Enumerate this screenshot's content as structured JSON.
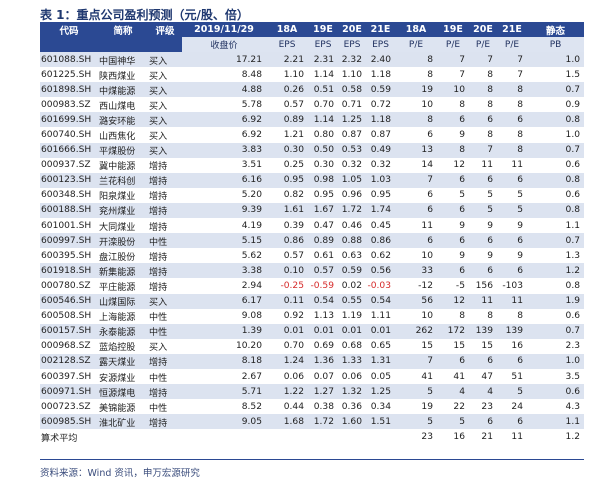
{
  "title": "表 1：重点公司盈利预测（元/股、倍）",
  "header": {
    "row1": [
      "代码",
      "简称",
      "评级",
      "2019/11/29",
      "18A",
      "19E",
      "20E",
      "21E",
      "18A",
      "19E",
      "20E",
      "21E",
      "静态"
    ],
    "row2": [
      "收盘价",
      "EPS",
      "EPS",
      "EPS",
      "EPS",
      "P/E",
      "P/E",
      "P/E",
      "P/E",
      "PB"
    ]
  },
  "rows": [
    {
      "code": "601088.SH",
      "name": "中国神华",
      "rating": "买入",
      "price": "17.21",
      "eps18": "2.21",
      "eps19": "2.31",
      "eps20": "2.32",
      "eps21": "2.40",
      "pe18": "8",
      "pe19": "7",
      "pe20": "7",
      "pe21": "7",
      "pb": "1.0"
    },
    {
      "code": "601225.SH",
      "name": "陕西煤业",
      "rating": "买入",
      "price": "8.48",
      "eps18": "1.10",
      "eps19": "1.14",
      "eps20": "1.10",
      "eps21": "1.18",
      "pe18": "8",
      "pe19": "7",
      "pe20": "8",
      "pe21": "7",
      "pb": "1.5"
    },
    {
      "code": "601898.SH",
      "name": "中煤能源",
      "rating": "买入",
      "price": "4.88",
      "eps18": "0.26",
      "eps19": "0.51",
      "eps20": "0.58",
      "eps21": "0.59",
      "pe18": "19",
      "pe19": "10",
      "pe20": "8",
      "pe21": "8",
      "pb": "0.7"
    },
    {
      "code": "000983.SZ",
      "name": "西山煤电",
      "rating": "买入",
      "price": "5.78",
      "eps18": "0.57",
      "eps19": "0.70",
      "eps20": "0.71",
      "eps21": "0.72",
      "pe18": "10",
      "pe19": "8",
      "pe20": "8",
      "pe21": "8",
      "pb": "0.9"
    },
    {
      "code": "601699.SH",
      "name": "潞安环能",
      "rating": "买入",
      "price": "6.92",
      "eps18": "0.89",
      "eps19": "1.14",
      "eps20": "1.25",
      "eps21": "1.18",
      "pe18": "8",
      "pe19": "6",
      "pe20": "6",
      "pe21": "6",
      "pb": "0.8"
    },
    {
      "code": "600740.SH",
      "name": "山西焦化",
      "rating": "买入",
      "price": "6.92",
      "eps18": "1.21",
      "eps19": "0.80",
      "eps20": "0.87",
      "eps21": "0.87",
      "pe18": "6",
      "pe19": "9",
      "pe20": "8",
      "pe21": "8",
      "pb": "1.0"
    },
    {
      "code": "601666.SH",
      "name": "平煤股份",
      "rating": "买入",
      "price": "3.83",
      "eps18": "0.30",
      "eps19": "0.50",
      "eps20": "0.53",
      "eps21": "0.49",
      "pe18": "13",
      "pe19": "8",
      "pe20": "7",
      "pe21": "8",
      "pb": "0.7"
    },
    {
      "code": "000937.SZ",
      "name": "冀中能源",
      "rating": "增持",
      "price": "3.51",
      "eps18": "0.25",
      "eps19": "0.30",
      "eps20": "0.32",
      "eps21": "0.32",
      "pe18": "14",
      "pe19": "12",
      "pe20": "11",
      "pe21": "11",
      "pb": "0.6"
    },
    {
      "code": "600123.SH",
      "name": "兰花科创",
      "rating": "增持",
      "price": "6.16",
      "eps18": "0.95",
      "eps19": "0.98",
      "eps20": "1.05",
      "eps21": "1.03",
      "pe18": "7",
      "pe19": "6",
      "pe20": "6",
      "pe21": "6",
      "pb": "0.8"
    },
    {
      "code": "600348.SH",
      "name": "阳泉煤业",
      "rating": "增持",
      "price": "5.20",
      "eps18": "0.82",
      "eps19": "0.95",
      "eps20": "0.96",
      "eps21": "0.95",
      "pe18": "6",
      "pe19": "5",
      "pe20": "5",
      "pe21": "5",
      "pb": "0.6"
    },
    {
      "code": "600188.SH",
      "name": "兖州煤业",
      "rating": "增持",
      "price": "9.39",
      "eps18": "1.61",
      "eps19": "1.67",
      "eps20": "1.72",
      "eps21": "1.74",
      "pe18": "6",
      "pe19": "6",
      "pe20": "5",
      "pe21": "5",
      "pb": "0.8"
    },
    {
      "code": "601001.SH",
      "name": "大同煤业",
      "rating": "增持",
      "price": "4.19",
      "eps18": "0.39",
      "eps19": "0.47",
      "eps20": "0.46",
      "eps21": "0.45",
      "pe18": "11",
      "pe19": "9",
      "pe20": "9",
      "pe21": "9",
      "pb": "1.1"
    },
    {
      "code": "600997.SH",
      "name": "开滦股份",
      "rating": "中性",
      "price": "5.15",
      "eps18": "0.86",
      "eps19": "0.89",
      "eps20": "0.88",
      "eps21": "0.86",
      "pe18": "6",
      "pe19": "6",
      "pe20": "6",
      "pe21": "6",
      "pb": "0.7"
    },
    {
      "code": "600395.SH",
      "name": "盘江股份",
      "rating": "增持",
      "price": "5.62",
      "eps18": "0.57",
      "eps19": "0.61",
      "eps20": "0.63",
      "eps21": "0.62",
      "pe18": "10",
      "pe19": "9",
      "pe20": "9",
      "pe21": "9",
      "pb": "1.3"
    },
    {
      "code": "601918.SH",
      "name": "新集能源",
      "rating": "增持",
      "price": "3.38",
      "eps18": "0.10",
      "eps19": "0.57",
      "eps20": "0.59",
      "eps21": "0.56",
      "pe18": "33",
      "pe19": "6",
      "pe20": "6",
      "pe21": "6",
      "pb": "1.2"
    },
    {
      "code": "000780.SZ",
      "name": "平庄能源",
      "rating": "增持",
      "price": "2.94",
      "eps18": "-0.25",
      "eps19": "-0.59",
      "eps20": "0.02",
      "eps21": "-0.03",
      "pe18": "-12",
      "pe19": "-5",
      "pe20": "156",
      "pe21": "-103",
      "pb": "0.8"
    },
    {
      "code": "600546.SH",
      "name": "山煤国际",
      "rating": "买入",
      "price": "6.17",
      "eps18": "0.11",
      "eps19": "0.54",
      "eps20": "0.55",
      "eps21": "0.54",
      "pe18": "56",
      "pe19": "12",
      "pe20": "11",
      "pe21": "11",
      "pb": "1.9"
    },
    {
      "code": "600508.SH",
      "name": "上海能源",
      "rating": "中性",
      "price": "9.08",
      "eps18": "0.92",
      "eps19": "1.13",
      "eps20": "1.19",
      "eps21": "1.11",
      "pe18": "10",
      "pe19": "8",
      "pe20": "8",
      "pe21": "8",
      "pb": "0.6"
    },
    {
      "code": "600157.SH",
      "name": "永泰能源",
      "rating": "中性",
      "price": "1.39",
      "eps18": "0.01",
      "eps19": "0.01",
      "eps20": "0.01",
      "eps21": "0.01",
      "pe18": "262",
      "pe19": "172",
      "pe20": "139",
      "pe21": "139",
      "pb": "0.7"
    },
    {
      "code": "000968.SZ",
      "name": "蓝焰控股",
      "rating": "买入",
      "price": "10.20",
      "eps18": "0.70",
      "eps19": "0.69",
      "eps20": "0.68",
      "eps21": "0.65",
      "pe18": "15",
      "pe19": "15",
      "pe20": "15",
      "pe21": "16",
      "pb": "2.3"
    },
    {
      "code": "002128.SZ",
      "name": "露天煤业",
      "rating": "增持",
      "price": "8.18",
      "eps18": "1.24",
      "eps19": "1.36",
      "eps20": "1.33",
      "eps21": "1.31",
      "pe18": "7",
      "pe19": "6",
      "pe20": "6",
      "pe21": "6",
      "pb": "1.0"
    },
    {
      "code": "600397.SH",
      "name": "安源煤业",
      "rating": "中性",
      "price": "2.67",
      "eps18": "0.06",
      "eps19": "0.07",
      "eps20": "0.06",
      "eps21": "0.05",
      "pe18": "41",
      "pe19": "41",
      "pe20": "47",
      "pe21": "51",
      "pb": "3.5"
    },
    {
      "code": "600971.SH",
      "name": "恒源煤电",
      "rating": "增持",
      "price": "5.71",
      "eps18": "1.22",
      "eps19": "1.27",
      "eps20": "1.32",
      "eps21": "1.25",
      "pe18": "5",
      "pe19": "4",
      "pe20": "4",
      "pe21": "5",
      "pb": "0.6"
    },
    {
      "code": "000723.SZ",
      "name": "美锦能源",
      "rating": "中性",
      "price": "8.52",
      "eps18": "0.44",
      "eps19": "0.38",
      "eps20": "0.36",
      "eps21": "0.34",
      "pe18": "19",
      "pe19": "22",
      "pe20": "23",
      "pe21": "24",
      "pb": "4.3"
    },
    {
      "code": "600985.SH",
      "name": "淮北矿业",
      "rating": "增持",
      "price": "9.05",
      "eps18": "1.68",
      "eps19": "1.72",
      "eps20": "1.60",
      "eps21": "1.51",
      "pe18": "5",
      "pe19": "5",
      "pe20": "6",
      "pe21": "6",
      "pb": "1.1"
    }
  ],
  "average": {
    "label": "算术平均",
    "pe18": "23",
    "pe19": "16",
    "pe20": "21",
    "pe21": "11",
    "pb": "1.2"
  },
  "source": "资料来源：Wind 资讯，申万宏源研究"
}
